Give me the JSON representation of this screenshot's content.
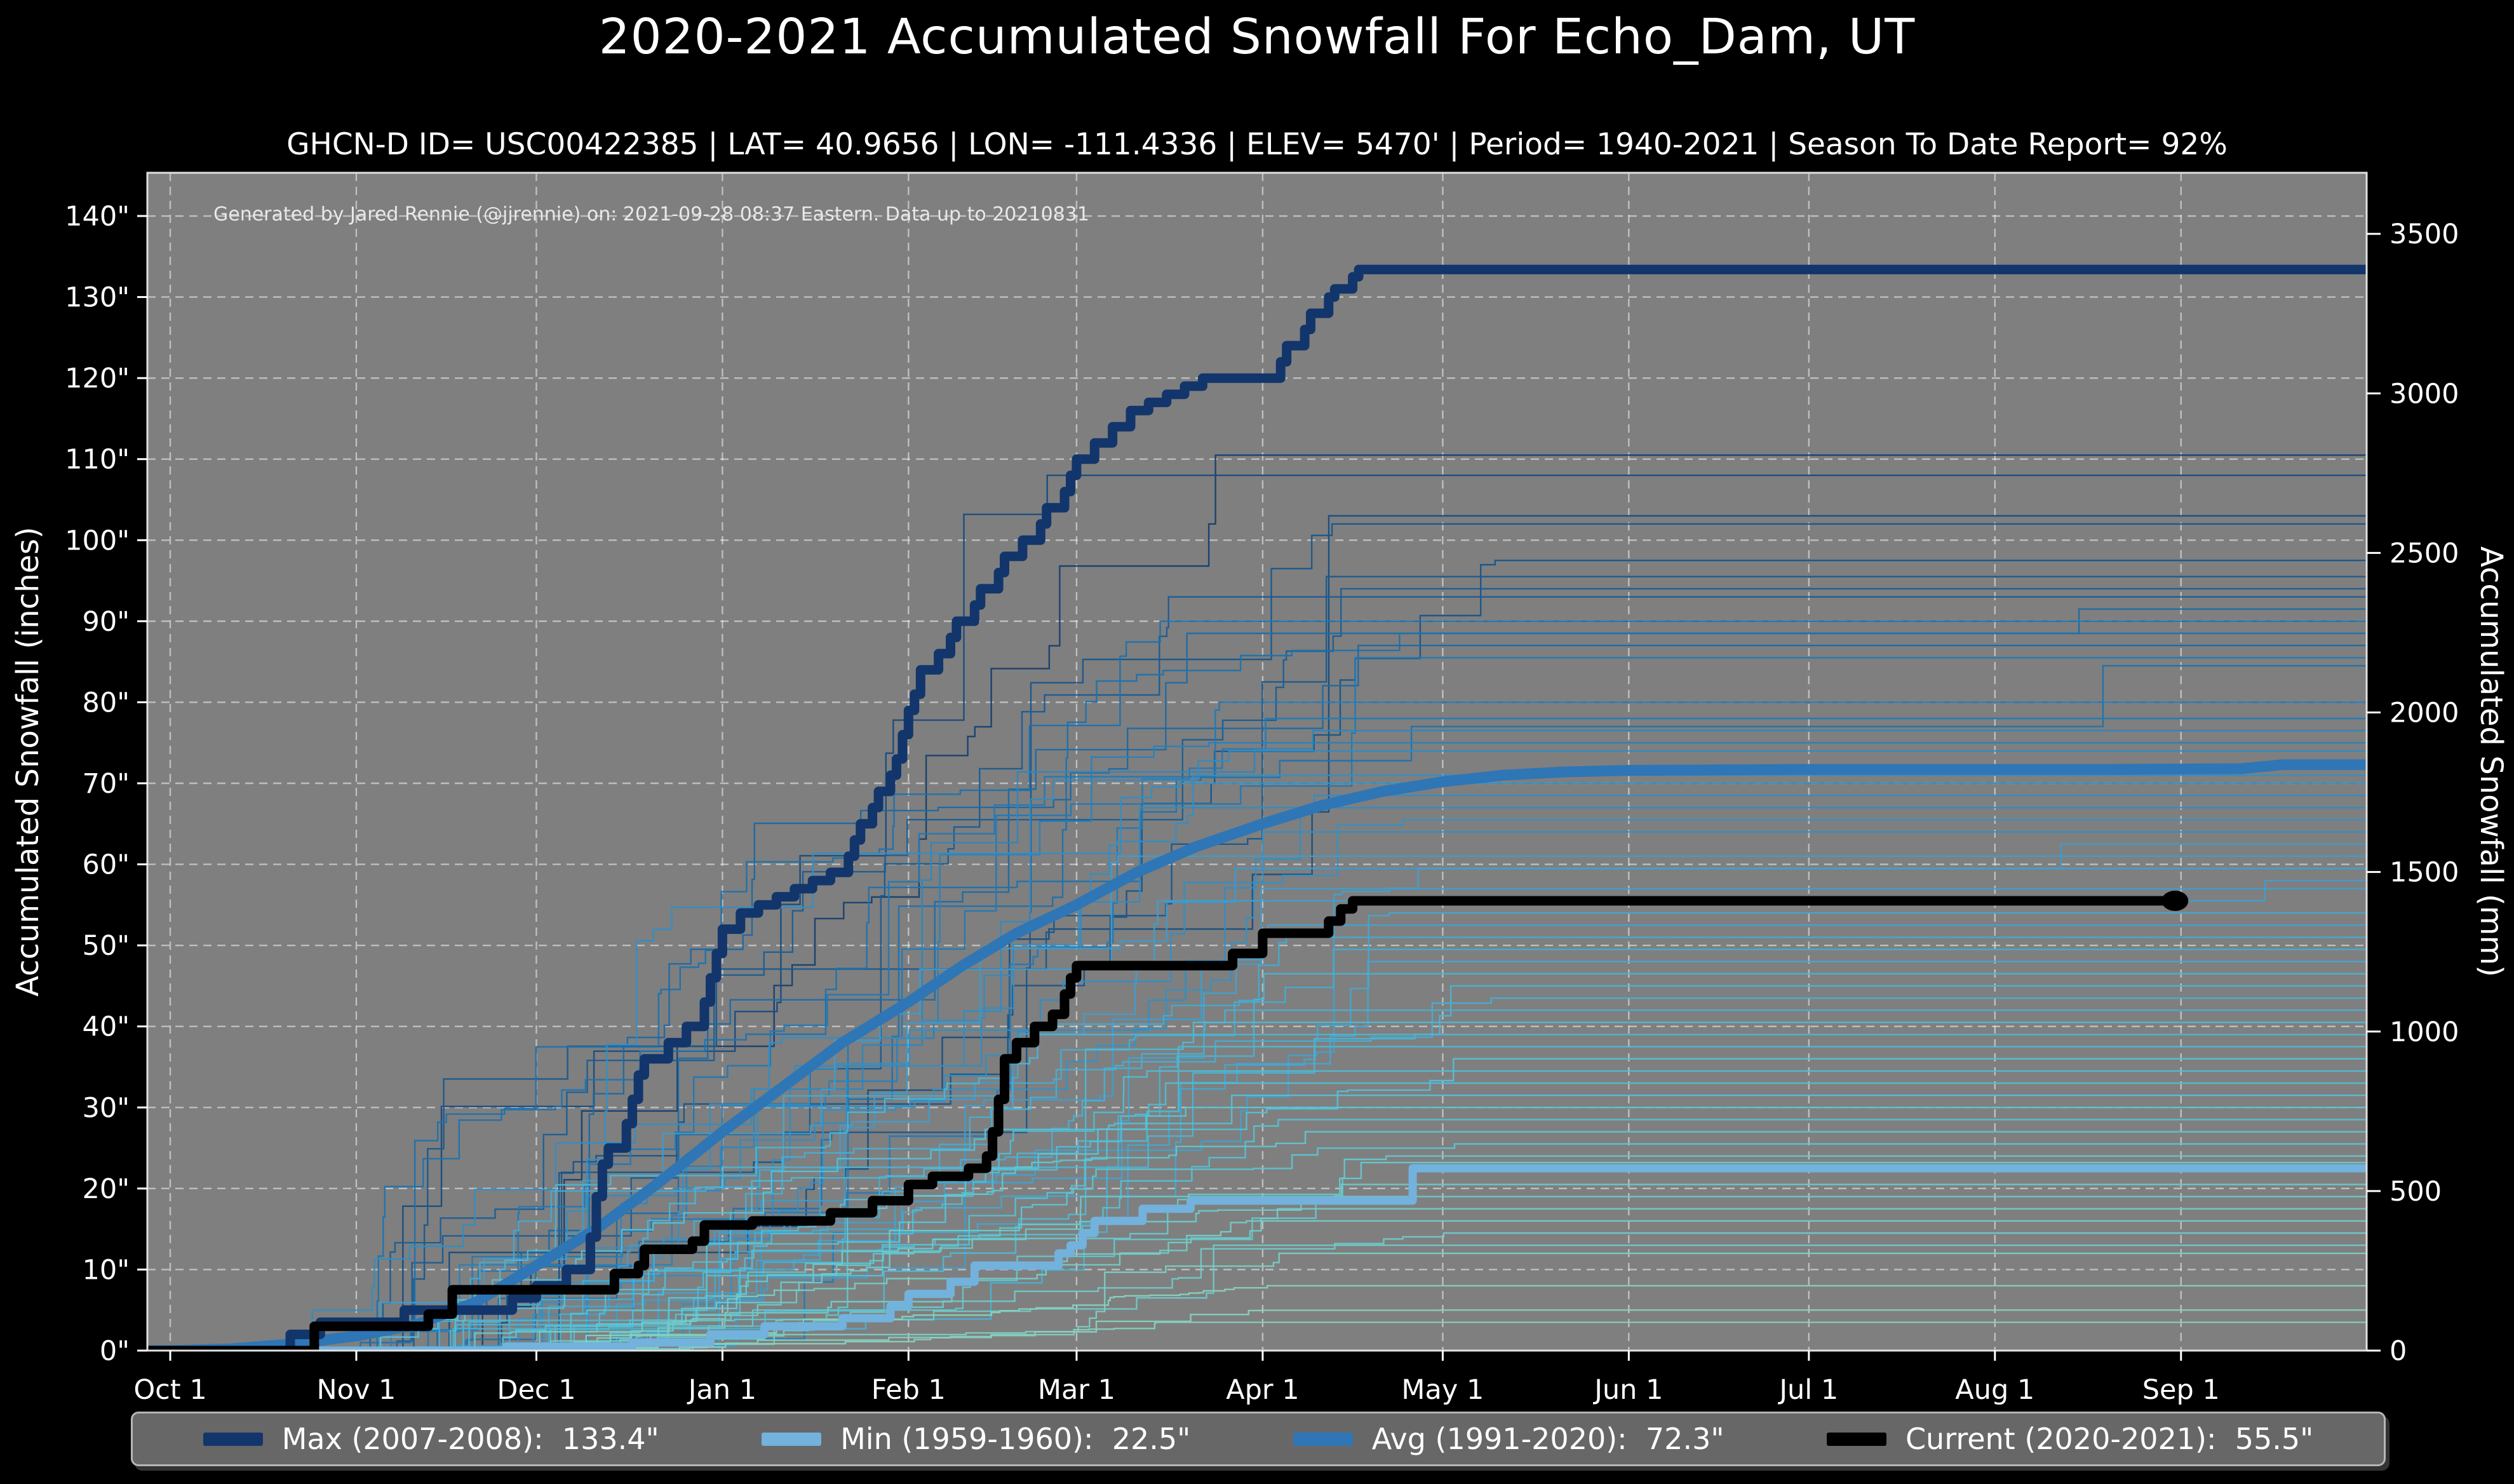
{
  "figure": {
    "title": "2020-2021 Accumulated Snowfall For Echo_Dam, UT",
    "subtitle": "GHCN-D ID= USC00422385 | LAT= 40.9656 | LON= -111.4336 | ELEV= 5470' | Period= 1940-2021 | Season To Date Report= 92%",
    "annotation": "Generated by Jared Rennie (@jjrennie) on: 2021-09-28 08:37 Eastern. Data up to 20210831",
    "colors": {
      "figure_bg": "#000000",
      "plot_bg": "#7f7f7f",
      "grid": "#ffffff",
      "spine": "#e0e0e0",
      "text": "#ffffff"
    }
  },
  "legend": {
    "items": [
      {
        "label": "Max (2007-2008):  133.4\"",
        "color": "#12366b"
      },
      {
        "label": "Min (1959-1960):  22.5\"",
        "color": "#72b2dc"
      },
      {
        "label": "Avg (1991-2020):  72.3\"",
        "color": "#2e76b6"
      },
      {
        "label": "Current (2020-2021):  55.5\"",
        "color": "#000000"
      }
    ]
  },
  "chart_data": {
    "type": "line",
    "x_axis": {
      "tick_labels": [
        "Oct 1",
        "Nov 1",
        "Dec 1",
        "Jan 1",
        "Feb 1",
        "Mar 1",
        "Apr 1",
        "May 1",
        "Jun 1",
        "Jul 1",
        "Aug 1",
        "Sep 1"
      ],
      "tick_days": [
        0,
        31,
        61,
        92,
        123,
        151,
        182,
        212,
        243,
        273,
        304,
        335
      ],
      "range_days": [
        -3.8,
        368
      ]
    },
    "y_left": {
      "label": "Accumulated Snowfall (inches)",
      "tick_labels": [
        "0\"",
        "10\"",
        "20\"",
        "30\"",
        "40\"",
        "50\"",
        "60\"",
        "70\"",
        "80\"",
        "90\"",
        "100\"",
        "110\"",
        "120\"",
        "130\"",
        "140\""
      ],
      "tick_values": [
        0,
        10,
        20,
        30,
        40,
        50,
        60,
        70,
        80,
        90,
        100,
        110,
        120,
        130,
        140
      ],
      "ylim": [
        0,
        145.3
      ]
    },
    "y_right": {
      "label": "Accumulated Snowfall (mm)",
      "tick_values": [
        0,
        500,
        1000,
        1500,
        2000,
        2500,
        3000,
        3500
      ]
    },
    "grid": {
      "on": true,
      "style": "dashed"
    },
    "legend_position": "bottom",
    "series": [
      {
        "name": "Max (2007-2008)",
        "value_label": "133.4\"",
        "final_value": 133.4,
        "color": "#12366b",
        "width": 15,
        "style": "step",
        "end_dot": false,
        "points": [
          [
            0,
            0
          ],
          [
            19,
            0
          ],
          [
            20,
            2
          ],
          [
            24,
            2
          ],
          [
            25,
            3.5
          ],
          [
            38,
            3.5
          ],
          [
            39,
            5
          ],
          [
            56,
            5
          ],
          [
            57,
            6.5
          ],
          [
            60,
            6.5
          ],
          [
            61,
            8
          ],
          [
            65,
            8
          ],
          [
            66,
            10
          ],
          [
            69,
            10
          ],
          [
            70,
            14
          ],
          [
            71,
            19
          ],
          [
            72,
            23
          ],
          [
            73,
            25
          ],
          [
            75,
            25
          ],
          [
            76,
            28
          ],
          [
            77,
            31
          ],
          [
            78,
            34
          ],
          [
            79,
            36
          ],
          [
            82,
            36
          ],
          [
            83,
            38
          ],
          [
            85,
            38
          ],
          [
            86,
            40
          ],
          [
            88,
            40
          ],
          [
            89,
            43
          ],
          [
            90,
            46
          ],
          [
            91,
            49
          ],
          [
            92,
            52
          ],
          [
            94,
            52
          ],
          [
            95,
            54
          ],
          [
            97,
            54
          ],
          [
            98,
            55
          ],
          [
            100,
            55
          ],
          [
            101,
            56
          ],
          [
            103,
            56
          ],
          [
            104,
            57
          ],
          [
            106,
            57
          ],
          [
            107,
            58
          ],
          [
            109,
            58
          ],
          [
            110,
            59
          ],
          [
            112,
            59
          ],
          [
            113,
            61
          ],
          [
            114,
            63
          ],
          [
            115,
            65
          ],
          [
            117,
            67
          ],
          [
            118,
            69
          ],
          [
            120,
            71
          ],
          [
            121,
            73
          ],
          [
            122,
            76
          ],
          [
            123,
            79
          ],
          [
            124,
            81
          ],
          [
            125,
            84
          ],
          [
            127,
            84
          ],
          [
            128,
            86
          ],
          [
            130,
            88
          ],
          [
            131,
            90
          ],
          [
            133,
            90
          ],
          [
            134,
            92
          ],
          [
            135,
            94
          ],
          [
            137,
            94
          ],
          [
            138,
            96
          ],
          [
            139,
            98
          ],
          [
            141,
            98
          ],
          [
            142,
            100
          ],
          [
            144,
            100
          ],
          [
            145,
            102
          ],
          [
            146,
            104
          ],
          [
            148,
            104
          ],
          [
            149,
            106
          ],
          [
            150,
            108
          ],
          [
            151,
            110
          ],
          [
            153,
            110
          ],
          [
            154,
            112
          ],
          [
            156,
            112
          ],
          [
            157,
            114
          ],
          [
            159,
            114
          ],
          [
            160,
            116
          ],
          [
            162,
            116
          ],
          [
            163,
            117
          ],
          [
            165,
            117
          ],
          [
            166,
            118
          ],
          [
            168,
            118
          ],
          [
            169,
            119
          ],
          [
            171,
            119
          ],
          [
            172,
            120
          ],
          [
            184,
            120
          ],
          [
            185,
            122
          ],
          [
            186,
            124
          ],
          [
            188,
            124
          ],
          [
            189,
            126
          ],
          [
            190,
            128
          ],
          [
            192,
            128
          ],
          [
            193,
            130
          ],
          [
            194,
            131
          ],
          [
            196,
            131
          ],
          [
            197,
            132.5
          ],
          [
            198,
            133.4
          ],
          [
            368,
            133.4
          ]
        ]
      },
      {
        "name": "Min (1959-1960)",
        "value_label": "22.5\"",
        "final_value": 22.5,
        "color": "#72b2dc",
        "width": 13,
        "style": "step",
        "end_dot": false,
        "points": [
          [
            0,
            0
          ],
          [
            55,
            0
          ],
          [
            56,
            0.5
          ],
          [
            76,
            0.5
          ],
          [
            77,
            1
          ],
          [
            89,
            1
          ],
          [
            90,
            2
          ],
          [
            98,
            2
          ],
          [
            99,
            3
          ],
          [
            111,
            3
          ],
          [
            112,
            4
          ],
          [
            119,
            4
          ],
          [
            120,
            5.5
          ],
          [
            122,
            5.5
          ],
          [
            123,
            7
          ],
          [
            129,
            7
          ],
          [
            130,
            8.5
          ],
          [
            133,
            8.5
          ],
          [
            134,
            10.5
          ],
          [
            147,
            10.5
          ],
          [
            148,
            12
          ],
          [
            150,
            13
          ],
          [
            152,
            14.5
          ],
          [
            154,
            16
          ],
          [
            161,
            16
          ],
          [
            162,
            17.5
          ],
          [
            169,
            17.5
          ],
          [
            170,
            18.5
          ],
          [
            206,
            18.5
          ],
          [
            207,
            22.5
          ],
          [
            368,
            22.5
          ]
        ]
      },
      {
        "name": "Avg (1991-2020)",
        "value_label": "72.3\"",
        "final_value": 72.3,
        "color": "#2e76b6",
        "width": 17,
        "style": "smooth",
        "end_dot": false,
        "points": [
          [
            0,
            0
          ],
          [
            10,
            0.2
          ],
          [
            20,
            0.8
          ],
          [
            31,
            1.8
          ],
          [
            41,
            3.2
          ],
          [
            51,
            6
          ],
          [
            61,
            10.5
          ],
          [
            71,
            15
          ],
          [
            81,
            20.5
          ],
          [
            92,
            27
          ],
          [
            102,
            32.5
          ],
          [
            112,
            38
          ],
          [
            123,
            43
          ],
          [
            132,
            47.5
          ],
          [
            141,
            51.5
          ],
          [
            151,
            55
          ],
          [
            161,
            59
          ],
          [
            171,
            62.2
          ],
          [
            182,
            65
          ],
          [
            192,
            67.3
          ],
          [
            202,
            69
          ],
          [
            212,
            70.2
          ],
          [
            222,
            71
          ],
          [
            232,
            71.4
          ],
          [
            243,
            71.6
          ],
          [
            270,
            71.7
          ],
          [
            320,
            71.7
          ],
          [
            345,
            71.8
          ],
          [
            352,
            72.3
          ],
          [
            368,
            72.3
          ]
        ]
      },
      {
        "name": "Current (2020-2021)",
        "value_label": "55.5\"",
        "final_value": 55.5,
        "color": "#000000",
        "width": 15,
        "style": "step",
        "end_dot": true,
        "end_day": 334,
        "points": [
          [
            0,
            0
          ],
          [
            23,
            0
          ],
          [
            24,
            3
          ],
          [
            42,
            3
          ],
          [
            43,
            4.5
          ],
          [
            46,
            4.5
          ],
          [
            47,
            7.5
          ],
          [
            73,
            7.5
          ],
          [
            74,
            9.5
          ],
          [
            77,
            9.5
          ],
          [
            78,
            10.5
          ],
          [
            79,
            12.5
          ],
          [
            86,
            12.5
          ],
          [
            87,
            13.5
          ],
          [
            88,
            13.5
          ],
          [
            89,
            15.5
          ],
          [
            96,
            15.5
          ],
          [
            97,
            16
          ],
          [
            109,
            16
          ],
          [
            110,
            17
          ],
          [
            116,
            17
          ],
          [
            117,
            18.5
          ],
          [
            122,
            18.5
          ],
          [
            123,
            20.5
          ],
          [
            126,
            20.5
          ],
          [
            127,
            21.5
          ],
          [
            132,
            21.5
          ],
          [
            133,
            22.5
          ],
          [
            135,
            22.5
          ],
          [
            136,
            24
          ],
          [
            137,
            27
          ],
          [
            138,
            31
          ],
          [
            139,
            36
          ],
          [
            140,
            36
          ],
          [
            141,
            38
          ],
          [
            143,
            38
          ],
          [
            144,
            40
          ],
          [
            146,
            40
          ],
          [
            147,
            41.5
          ],
          [
            148,
            41.5
          ],
          [
            149,
            44
          ],
          [
            150,
            46
          ],
          [
            151,
            47.5
          ],
          [
            176,
            47.5
          ],
          [
            177,
            49
          ],
          [
            181,
            49
          ],
          [
            182,
            51.5
          ],
          [
            192,
            51.5
          ],
          [
            193,
            53
          ],
          [
            194,
            53
          ],
          [
            195,
            54.5
          ],
          [
            196,
            54.5
          ],
          [
            197,
            55.5
          ],
          [
            334,
            55.5
          ]
        ]
      }
    ],
    "background_years": {
      "description": "All individual seasons 1940-2021 drawn as thin step lines, colored dark navy (high totals) to pale teal (low totals)",
      "seed": 11,
      "width": 2.4,
      "color_stops": [
        "#8ad1bd",
        "#55c3d6",
        "#3f9fd0",
        "#1f77b4",
        "#16406f"
      ],
      "final_values": [
        110.5,
        108,
        103,
        102,
        97.5,
        95.5,
        94,
        93,
        91.5,
        90,
        88.5,
        87,
        85.5,
        84.5,
        80,
        78,
        76.5,
        75,
        74,
        71,
        70,
        68.5,
        67,
        65.5,
        64,
        62.5,
        61,
        59.5,
        58,
        57,
        54,
        52.5,
        51,
        49.5,
        48,
        46.5,
        45,
        43.5,
        42,
        40.5,
        39,
        37.5,
        36,
        34.5,
        33,
        31.5,
        30,
        28.5,
        27,
        25.5,
        24,
        23.2,
        20.5,
        19,
        17.5,
        16,
        14.5,
        13,
        12,
        8,
        5,
        3.5
      ],
      "late_bumps": [
        {
          "final": 91.5,
          "delta": 3,
          "day": 318
        },
        {
          "final": 84.5,
          "delta": 7.5,
          "day": 322
        },
        {
          "final": 62.5,
          "delta": 3,
          "day": 315
        },
        {
          "final": 58,
          "delta": 2.5,
          "day": 349
        }
      ]
    }
  }
}
